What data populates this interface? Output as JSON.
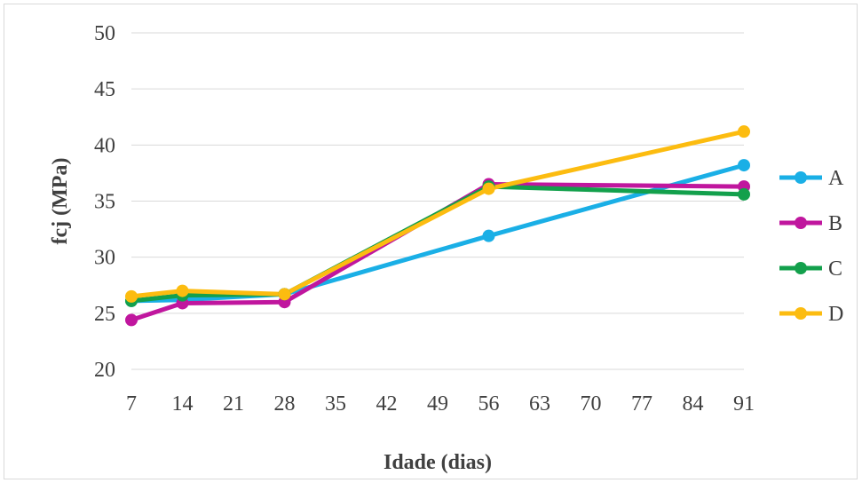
{
  "chart_data": {
    "type": "line",
    "title": "",
    "xlabel": "Idade (dias)",
    "ylabel": "fcj (MPa)",
    "xlim": [
      7,
      91
    ],
    "ylim": [
      20,
      50
    ],
    "xticks": [
      7,
      14,
      21,
      28,
      35,
      42,
      49,
      56,
      63,
      70,
      77,
      84,
      91
    ],
    "yticks": [
      20,
      25,
      30,
      35,
      40,
      45,
      50
    ],
    "grid": "horizontal",
    "legend": "right",
    "x": [
      7,
      14,
      28,
      56,
      91
    ],
    "series": [
      {
        "name": "A",
        "color": "#1aafe6",
        "values": [
          26.1,
          26.2,
          26.7,
          31.9,
          38.2
        ]
      },
      {
        "name": "B",
        "color": "#c0169e",
        "values": [
          24.4,
          25.9,
          26.0,
          36.5,
          36.3
        ]
      },
      {
        "name": "C",
        "color": "#13a04c",
        "values": [
          26.1,
          26.6,
          26.7,
          36.3,
          35.6
        ]
      },
      {
        "name": "D",
        "color": "#fcbc10",
        "values": [
          26.5,
          27.0,
          26.7,
          36.1,
          41.2
        ]
      }
    ]
  }
}
